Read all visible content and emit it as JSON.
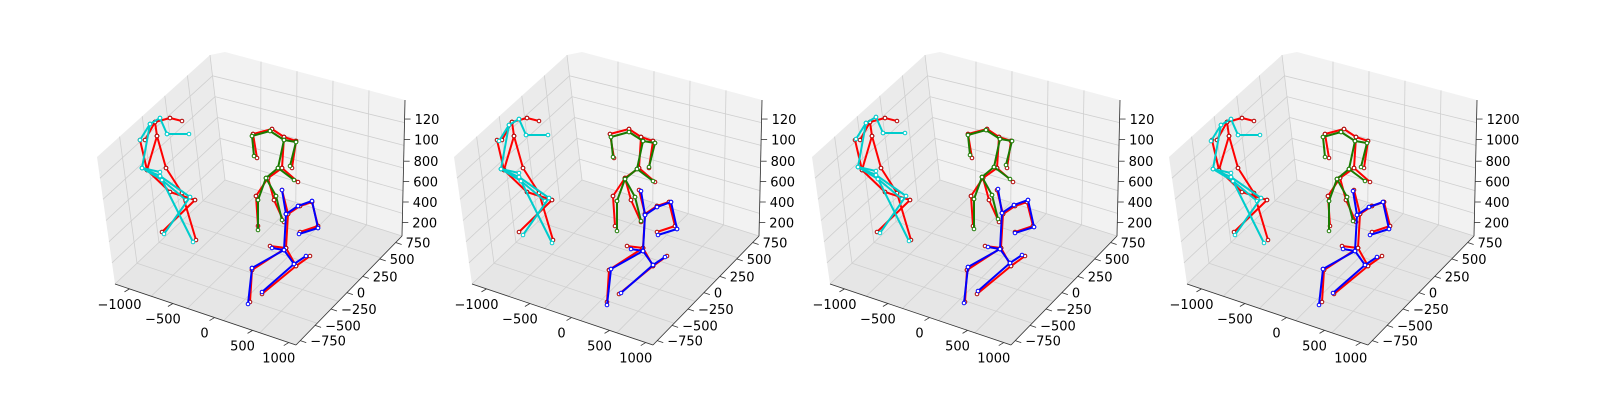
{
  "chart_data": [
    {
      "type": "scatter",
      "subtype": "3d-skeleton",
      "x_ticks": [
        "−1000",
        "−500",
        "0",
        "500",
        "1000"
      ],
      "y_ticks": [
        "−750",
        "−500",
        "−250",
        "0",
        "250",
        "500",
        "750"
      ],
      "z_ticks": [
        "200",
        "400",
        "600",
        "800",
        "100",
        "120"
      ],
      "colors": {
        "person1_gt": "#ff0000",
        "person1_pred": "#00cccc",
        "person2_gt": "#ff0000",
        "person2_pred": "#1a7a00",
        "person3_gt": "#ff0000",
        "person3_pred": "#0000ff"
      }
    },
    {
      "type": "scatter",
      "subtype": "3d-skeleton",
      "x_ticks": [
        "−1000",
        "−500",
        "0",
        "500",
        "1000"
      ],
      "y_ticks": [
        "−750",
        "−500",
        "−250",
        "0",
        "250",
        "500",
        "750"
      ],
      "z_ticks": [
        "200",
        "400",
        "600",
        "800",
        "100",
        "120"
      ],
      "colors": {
        "person1_gt": "#ff0000",
        "person1_pred": "#00cccc",
        "person2_gt": "#ff0000",
        "person2_pred": "#1a7a00",
        "person3_gt": "#ff0000",
        "person3_pred": "#0000ff"
      }
    },
    {
      "type": "scatter",
      "subtype": "3d-skeleton",
      "x_ticks": [
        "−1000",
        "−500",
        "0",
        "500",
        "1000"
      ],
      "y_ticks": [
        "−750",
        "−500",
        "−250",
        "0",
        "250",
        "500",
        "750"
      ],
      "z_ticks": [
        "200",
        "400",
        "600",
        "800",
        "100",
        "120"
      ],
      "colors": {
        "person1_gt": "#ff0000",
        "person1_pred": "#00cccc",
        "person2_gt": "#ff0000",
        "person2_pred": "#1a7a00",
        "person3_gt": "#ff0000",
        "person3_pred": "#0000ff"
      }
    },
    {
      "type": "scatter",
      "subtype": "3d-skeleton",
      "x_ticks": [
        "−1000",
        "−500",
        "0",
        "500",
        "1000"
      ],
      "y_ticks": [
        "−750",
        "−500",
        "−250",
        "0",
        "250",
        "500",
        "750"
      ],
      "z_ticks": [
        "200",
        "400",
        "600",
        "800",
        "1000",
        "1200"
      ],
      "colors": {
        "person1_gt": "#ff0000",
        "person1_pred": "#00cccc",
        "person2_gt": "#ff0000",
        "person2_pred": "#1a7a00",
        "person3_gt": "#ff0000",
        "person3_pred": "#0000ff"
      }
    }
  ]
}
